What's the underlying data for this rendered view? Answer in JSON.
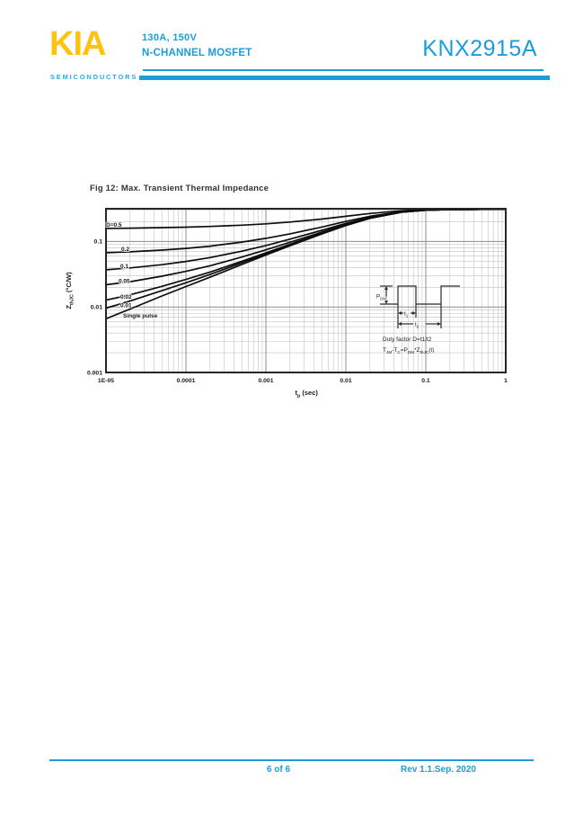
{
  "header": {
    "logo_text": "KIA",
    "logo_subtext": "SEMICONDUCTORS",
    "spec_line1": "130A, 150V",
    "spec_line2": "N-CHANNEL MOSFET",
    "part_number": "KNX2915A",
    "accent_color": "#1B9DD9",
    "logo_color": "#FFC20E"
  },
  "figure": {
    "title": "Fig 12: Max. Transient Thermal Impedance",
    "ylabel_parts": [
      [
        "Z",
        0
      ],
      [
        "thJC",
        1
      ],
      [
        " (°C/W)",
        0
      ]
    ],
    "xlabel_parts": [
      [
        "t",
        0
      ],
      [
        "p",
        1
      ],
      [
        " (sec)",
        0
      ]
    ],
    "inset": {
      "pdm_parts": [
        [
          "P",
          0
        ],
        [
          "DM",
          1
        ]
      ],
      "t1_parts": [
        [
          "t",
          0
        ],
        [
          "1",
          1
        ]
      ],
      "t2_parts": [
        [
          "t",
          0
        ],
        [
          "2",
          1
        ]
      ],
      "duty_line": "Duty factor D=t1/t2",
      "formula_parts": [
        [
          "T",
          0
        ],
        [
          "JM",
          1
        ],
        [
          "-T",
          0
        ],
        [
          "C",
          1
        ],
        [
          "=P",
          0
        ],
        [
          "DM",
          1
        ],
        [
          "*Z",
          0
        ],
        [
          "thJC",
          1
        ],
        [
          "(t)",
          0
        ]
      ]
    }
  },
  "chart_data": {
    "type": "line",
    "title": "Fig 12: Max. Transient Thermal Impedance",
    "xlabel": "tp (sec)",
    "ylabel": "ZthJC (°C/W)",
    "x_scale": "log",
    "y_scale": "log",
    "xlim": [
      1e-05,
      1
    ],
    "ylim": [
      0.001,
      0.316
    ],
    "grid": true,
    "x_ticklabels": [
      "1E-05",
      "0.0001",
      "0.001",
      "0.01",
      "0.1",
      "1"
    ],
    "x_tickvalues": [
      1e-05,
      0.0001,
      0.001,
      0.01,
      0.1,
      1
    ],
    "y_ticklabels": [
      "0.1",
      "0.01",
      "0.001"
    ],
    "y_tickvalues": [
      0.1,
      0.01,
      0.001
    ],
    "rth_jc_steady_state": 0.31,
    "t": [
      1e-05,
      2e-05,
      5e-05,
      0.0001,
      0.0002,
      0.0005,
      0.001,
      0.002,
      0.005,
      0.01,
      0.02,
      0.05,
      0.1,
      0.2,
      0.5,
      1
    ],
    "series": [
      {
        "name": "D=0.5",
        "duty": 0.5,
        "values": [
          0.1583,
          0.1597,
          0.1624,
          0.1653,
          0.1693,
          0.1773,
          0.186,
          0.198,
          0.22,
          0.2425,
          0.2675,
          0.295,
          0.305,
          0.3085,
          0.31,
          0.31
        ]
      },
      {
        "name": "0.2",
        "duty": 0.2,
        "values": [
          0.0673,
          0.0694,
          0.0738,
          0.0784,
          0.0848,
          0.0976,
          0.1116,
          0.1308,
          0.166,
          0.202,
          0.242,
          0.286,
          0.302,
          0.3076,
          0.31,
          0.31
        ]
      },
      {
        "name": "0.1",
        "duty": 0.1,
        "values": [
          0.0369,
          0.0394,
          0.0442,
          0.0495,
          0.0567,
          0.0711,
          0.0868,
          0.1084,
          0.148,
          0.1885,
          0.2335,
          0.283,
          0.301,
          0.3073,
          0.31,
          0.31
        ]
      },
      {
        "name": "0.05",
        "duty": 0.05,
        "values": [
          0.0218,
          0.0243,
          0.0295,
          0.035,
          0.0426,
          0.0578,
          0.0744,
          0.0972,
          0.139,
          0.1818,
          0.2293,
          0.2815,
          0.3005,
          0.3072,
          0.31,
          0.31
        ]
      },
      {
        "name": "0.02",
        "duty": 0.02,
        "values": [
          0.0127,
          0.0153,
          0.0206,
          0.0263,
          0.0341,
          0.0498,
          0.067,
          0.0905,
          0.1336,
          0.1777,
          0.2267,
          0.2806,
          0.3002,
          0.3071,
          0.31,
          0.31
        ]
      },
      {
        "name": "0.01",
        "duty": 0.01,
        "values": [
          0.0096,
          0.0123,
          0.0177,
          0.0234,
          0.0313,
          0.0472,
          0.0645,
          0.0882,
          0.1318,
          0.1764,
          0.2259,
          0.2803,
          0.3001,
          0.307,
          0.31,
          0.31
        ]
      },
      {
        "name": "Single pulse",
        "duty": 0,
        "values": [
          0.0066,
          0.0093,
          0.0147,
          0.0205,
          0.0285,
          0.0445,
          0.062,
          0.086,
          0.13,
          0.175,
          0.225,
          0.28,
          0.3,
          0.307,
          0.31,
          0.31
        ]
      }
    ]
  },
  "footer": {
    "page_label": "6 of 6",
    "revision": "Rev 1.1.Sep. 2020"
  }
}
